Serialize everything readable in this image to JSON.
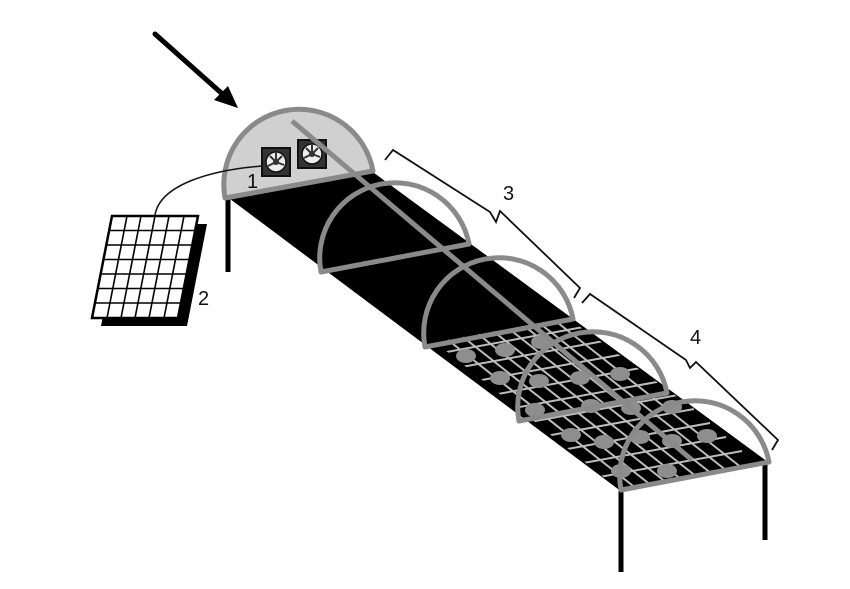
{
  "diagram": {
    "labels": {
      "fans": "1",
      "solar_panel": "2",
      "section_3": "3",
      "section_4": "4"
    },
    "colors": {
      "frame": "#8a8a8a",
      "dome_fill": "#d0d0d0",
      "bed": "#000000",
      "grid": "#bdbdbd",
      "items": "#8e8e8e",
      "legs": "#000000",
      "ink": "#111111"
    },
    "icons": [
      "arrow-icon",
      "fan-icon",
      "solar-panel-icon",
      "bracket-icon"
    ]
  }
}
